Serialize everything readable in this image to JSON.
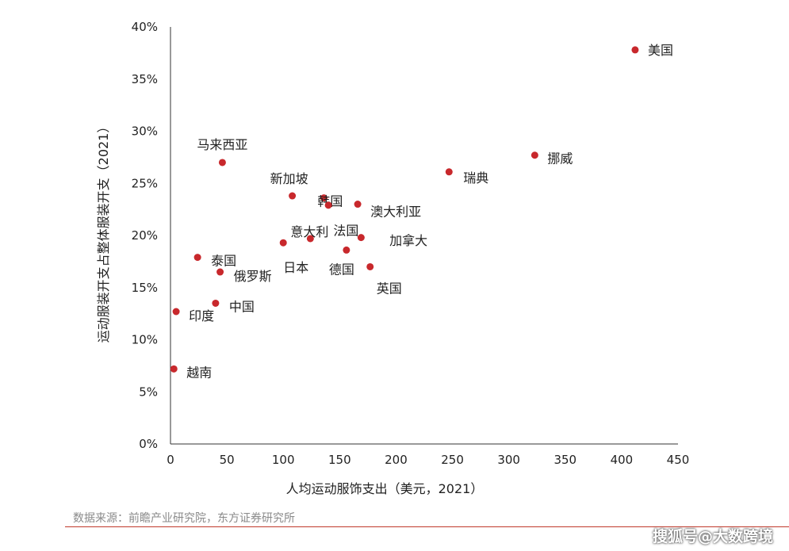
{
  "chart_data": {
    "type": "scatter",
    "xlabel": "人均运动服饰支出（美元，2021）",
    "ylabel": "运动服装开支占整体服装开支（2021）",
    "xlim": [
      0,
      450
    ],
    "ylim": [
      0,
      40
    ],
    "x_ticks": [
      0,
      50,
      100,
      150,
      200,
      250,
      300,
      350,
      400,
      450
    ],
    "y_ticks": [
      0,
      5,
      10,
      15,
      20,
      25,
      30,
      35,
      40
    ],
    "y_tick_labels": [
      "0%",
      "5%",
      "10%",
      "15%",
      "20%",
      "25%",
      "30%",
      "35%",
      "40%"
    ],
    "grid": false,
    "marker_color": "#c8282c",
    "points": [
      {
        "label": "美国",
        "x": 412,
        "y": 37.8
      },
      {
        "label": "挪威",
        "x": 323,
        "y": 27.7
      },
      {
        "label": "瑞典",
        "x": 247,
        "y": 26.1
      },
      {
        "label": "马来西亚",
        "x": 46,
        "y": 27.0
      },
      {
        "label": "新加坡",
        "x": 108,
        "y": 23.8
      },
      {
        "label": "韩国",
        "x": 136,
        "y": 23.6
      },
      {
        "label": "澳大利亚",
        "x": 166,
        "y": 23.0
      },
      {
        "label": "意大利",
        "x": 124,
        "y": 19.7
      },
      {
        "label": "法国",
        "x": 169,
        "y": 19.8
      },
      {
        "label": "日本",
        "x": 100,
        "y": 19.3
      },
      {
        "label": "德国",
        "x": 156,
        "y": 18.6
      },
      {
        "label": "加拿大",
        "x": 140,
        "y": 22.9
      },
      {
        "label": "英国",
        "x": 177,
        "y": 17.0
      },
      {
        "label": "泰国",
        "x": 24,
        "y": 17.9
      },
      {
        "label": "俄罗斯",
        "x": 44,
        "y": 16.5
      },
      {
        "label": "中国",
        "x": 40,
        "y": 13.5
      },
      {
        "label": "印度",
        "x": 5,
        "y": 12.7
      },
      {
        "label": "越南",
        "x": 3,
        "y": 7.2
      }
    ]
  },
  "footer": {
    "source": "数据来源：前瞻产业研究院，东方证券研究所",
    "watermark": "搜狐号@大数跨境"
  }
}
